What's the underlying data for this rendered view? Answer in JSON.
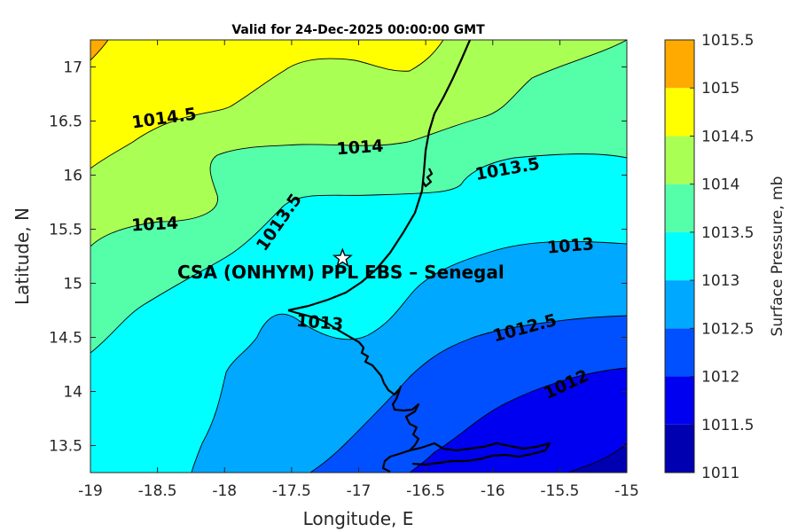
{
  "chart_data": {
    "type": "contour-map",
    "title": "Valid for 24-Dec-2025 00:00:00 GMT",
    "xlabel": "Longitude, E",
    "ylabel": "Latitude, N",
    "xlim": [
      -19,
      -15
    ],
    "ylim": [
      13.25,
      17.25
    ],
    "xticks": [
      "-19",
      "-18.5",
      "-18",
      "-17.5",
      "-17",
      "-16.5",
      "-16",
      "-15.5",
      "-15"
    ],
    "yticks": [
      "13.5",
      "14",
      "14.5",
      "15",
      "15.5",
      "16",
      "16.5",
      "17"
    ],
    "colorbar": {
      "label": "Surface Pressure, mb",
      "levels": [
        "1011",
        "1011.5",
        "1012",
        "1012.5",
        "1013",
        "1013.5",
        "1014",
        "1014.5",
        "1015",
        "1015.5"
      ],
      "colors": [
        "#0000b0",
        "#0000f0",
        "#0050ff",
        "#00a8ff",
        "#00ffff",
        "#55ffaa",
        "#aaff55",
        "#ffff00",
        "#ffaa00",
        "#ff5000"
      ]
    },
    "contour_labels": [
      {
        "text": "1014.5",
        "lon": -18.45,
        "lat": 16.52,
        "rotate": -8
      },
      {
        "text": "1014",
        "lon": -16.99,
        "lat": 16.25,
        "rotate": -4
      },
      {
        "text": "1013.5",
        "lon": -15.89,
        "lat": 16.05,
        "rotate": -10
      },
      {
        "text": "1014",
        "lon": -18.52,
        "lat": 15.54,
        "rotate": -3
      },
      {
        "text": "1013.5",
        "lon": -17.59,
        "lat": 15.56,
        "rotate": -55
      },
      {
        "text": "1013",
        "lon": -15.42,
        "lat": 15.34,
        "rotate": -5
      },
      {
        "text": "1013",
        "lon": -17.29,
        "lat": 14.63,
        "rotate": 5
      },
      {
        "text": "1012.5",
        "lon": -15.76,
        "lat": 14.58,
        "rotate": -15
      },
      {
        "text": "1012",
        "lon": -15.45,
        "lat": 14.06,
        "rotate": -25
      }
    ],
    "site": {
      "name": "CSA (ONHYM) PPL EBS  – Senegal",
      "lon": -17.12,
      "lat": 15.23,
      "marker": "star"
    },
    "grid": false,
    "colorbar_position": "right"
  }
}
